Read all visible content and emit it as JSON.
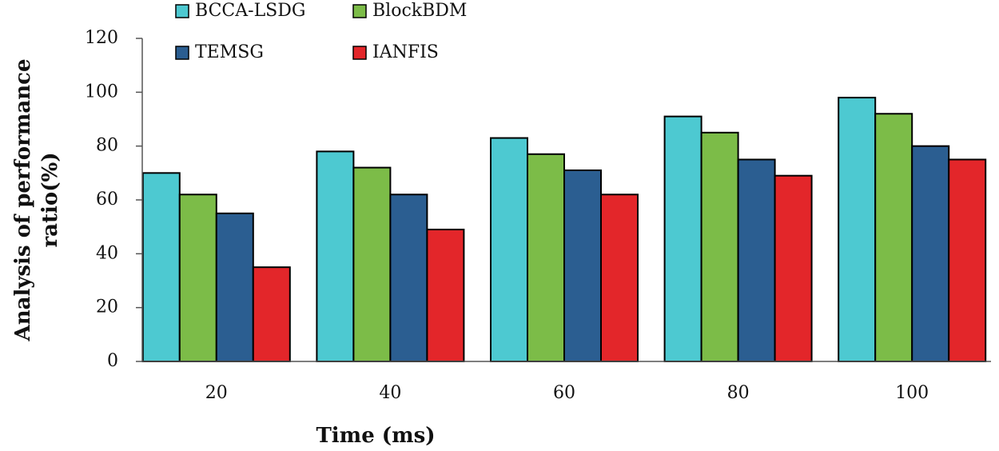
{
  "chart_data": {
    "type": "bar",
    "xlabel": "Time (ms)",
    "ylabel": [
      "Analysis of performance",
      "ratio(%)"
    ],
    "categories": [
      "20",
      "40",
      "60",
      "80",
      "100"
    ],
    "series": [
      {
        "name": "BCCA-LSDG",
        "color": "#4dc9d1",
        "values": [
          70,
          78,
          83,
          91,
          98
        ]
      },
      {
        "name": "BlockBDM",
        "color": "#7cbc48",
        "values": [
          62,
          72,
          77,
          85,
          92
        ]
      },
      {
        "name": "TEMSG",
        "color": "#2b5e91",
        "values": [
          55,
          62,
          71,
          75,
          80
        ]
      },
      {
        "name": "IANFIS",
        "color": "#e3262a",
        "values": [
          35,
          49,
          62,
          69,
          75
        ]
      }
    ],
    "ylim": [
      0,
      120
    ],
    "yticks": [
      0,
      20,
      40,
      60,
      80,
      100,
      120
    ]
  }
}
